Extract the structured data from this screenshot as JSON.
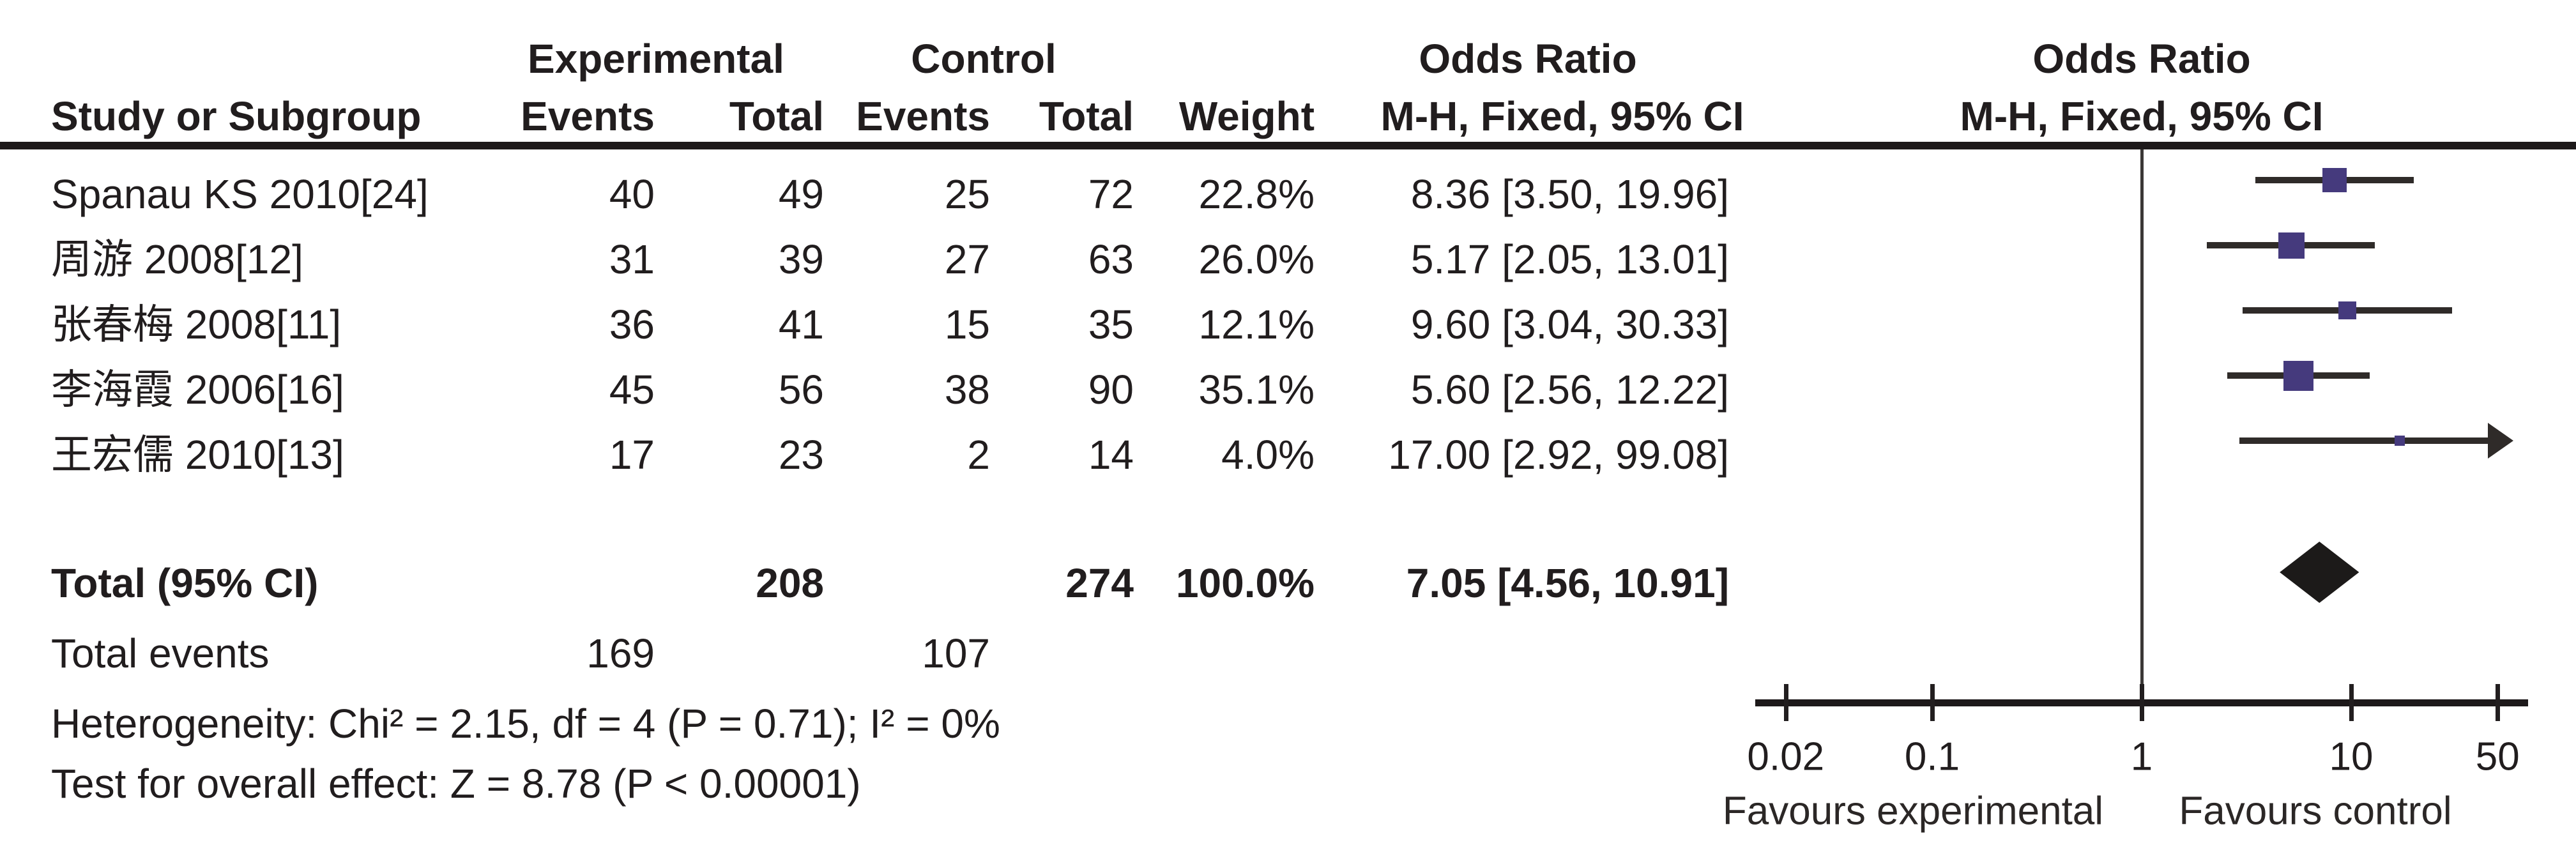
{
  "headers": {
    "group": {
      "experimental": "Experimental",
      "control": "Control",
      "odds_ratio_text": "Odds Ratio",
      "odds_ratio_plot": "Odds Ratio"
    },
    "sub": {
      "study": "Study or Subgroup",
      "exp_events": "Events",
      "exp_total": "Total",
      "ctrl_events": "Events",
      "ctrl_total": "Total",
      "weight": "Weight",
      "mh_ci_text": "M-H, Fixed, 95% CI",
      "mh_ci_plot": "M-H, Fixed, 95% CI"
    }
  },
  "footer": {
    "heterogeneity": "Heterogeneity: Chi² = 2.15, df = 4 (P = 0.71); I² = 0%",
    "overall_effect": "Test for overall effect: Z = 8.78 (P < 0.00001)"
  },
  "colors": {
    "marker_square": "#453a7d",
    "ci_line": "#2f2b29",
    "diamond": "#1c1a19",
    "text": "#211d1e"
  },
  "chart_data": {
    "type": "forest",
    "effect_measure": "Odds Ratio",
    "method": "M-H, Fixed, 95% CI",
    "x_axis": {
      "scale": "log",
      "ticks": [
        0.02,
        0.1,
        1,
        10,
        50
      ],
      "tick_labels": [
        "0.02",
        "0.1",
        "1",
        "10",
        "50"
      ],
      "range": [
        0.02,
        50
      ],
      "left_label": "Favours experimental",
      "right_label": "Favours control"
    },
    "studies": [
      {
        "name": "Spanau KS 2010[24]",
        "exp_events": "40",
        "exp_total": "49",
        "ctrl_events": "25",
        "ctrl_total": "72",
        "weight": "22.8%",
        "weight_pct": 22.8,
        "or": 8.36,
        "ci_low": 3.5,
        "ci_high": 19.96,
        "or_label": "8.36 [3.50, 19.96]"
      },
      {
        "name": "周游 2008[12]",
        "exp_events": "31",
        "exp_total": "39",
        "ctrl_events": "27",
        "ctrl_total": "63",
        "weight": "26.0%",
        "weight_pct": 26.0,
        "or": 5.17,
        "ci_low": 2.05,
        "ci_high": 13.01,
        "or_label": "5.17 [2.05, 13.01]"
      },
      {
        "name": "张春梅 2008[11]",
        "exp_events": "36",
        "exp_total": "41",
        "ctrl_events": "15",
        "ctrl_total": "35",
        "weight": "12.1%",
        "weight_pct": 12.1,
        "or": 9.6,
        "ci_low": 3.04,
        "ci_high": 30.33,
        "or_label": "9.60 [3.04, 30.33]"
      },
      {
        "name": "李海霞 2006[16]",
        "exp_events": "45",
        "exp_total": "56",
        "ctrl_events": "38",
        "ctrl_total": "90",
        "weight": "35.1%",
        "weight_pct": 35.1,
        "or": 5.6,
        "ci_low": 2.56,
        "ci_high": 12.22,
        "or_label": "5.60 [2.56, 12.22]"
      },
      {
        "name": "王宏儒 2010[13]",
        "exp_events": "17",
        "exp_total": "23",
        "ctrl_events": "2",
        "ctrl_total": "14",
        "weight": "4.0%",
        "weight_pct": 4.0,
        "or": 17.0,
        "ci_low": 2.92,
        "ci_high": 99.08,
        "or_label": "17.00 [2.92, 99.08]"
      }
    ],
    "total": {
      "label": "Total (95% CI)",
      "exp_total": "208",
      "ctrl_total": "274",
      "weight": "100.0%",
      "or": 7.05,
      "ci_low": 4.56,
      "ci_high": 10.91,
      "or_label": "7.05 [4.56, 10.91]"
    },
    "total_events": {
      "label": "Total events",
      "experimental": "169",
      "control": "107"
    }
  }
}
